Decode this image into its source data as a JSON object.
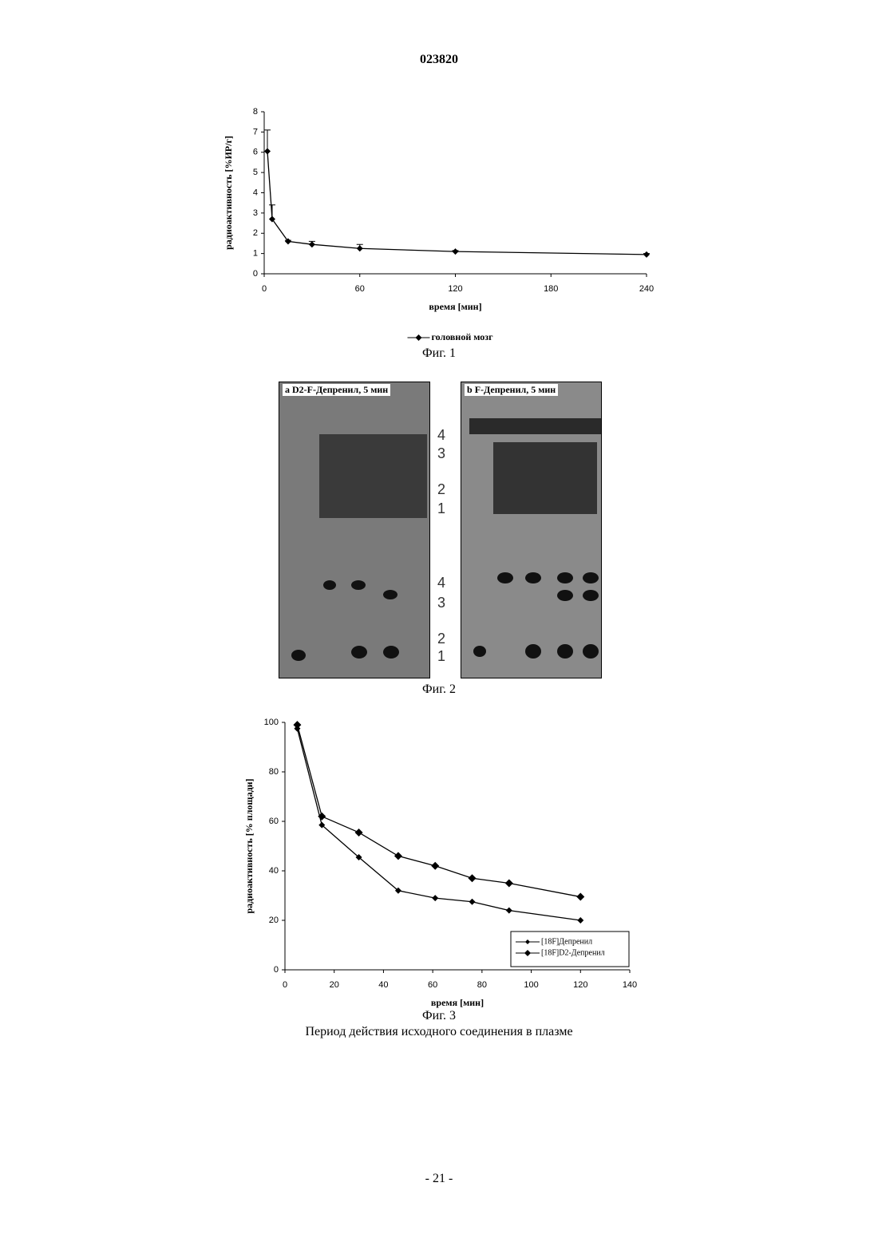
{
  "header": {
    "number": "023820"
  },
  "chart_data": [
    {
      "type": "line",
      "x_label": "время [мин]",
      "y_label": "радиоактивность [%ИР/г]",
      "x": [
        2,
        5,
        15,
        30,
        60,
        120,
        240
      ],
      "series": [
        {
          "name": "головной мозг",
          "color": "#000000",
          "values": [
            6.05,
            2.7,
            1.6,
            1.45,
            1.25,
            1.1,
            0.95
          ],
          "errors": [
            1.05,
            0.7,
            0.05,
            0.15,
            0.2,
            0.05,
            0.05
          ]
        }
      ],
      "xlim": [
        0,
        240
      ],
      "xticks": [
        0,
        60,
        120,
        180,
        240
      ],
      "ylim": [
        0,
        8
      ],
      "yticks": [
        0,
        1,
        2,
        3,
        4,
        5,
        6,
        7,
        8
      ],
      "grid": false,
      "legend": "bottom"
    },
    {
      "type": "line",
      "x_label": "время [мин]",
      "y_label": "радиоактивность [% площади]",
      "x": [
        5,
        15,
        30,
        46,
        61,
        76,
        91,
        120
      ],
      "series": [
        {
          "name": "[18F]Депренил",
          "color": "#000000",
          "values": [
            97.5,
            58.5,
            45.5,
            32,
            29,
            27.5,
            24,
            20
          ]
        },
        {
          "name": "[18F]D2-Депренил",
          "color": "#000000",
          "values": [
            99,
            62,
            55.5,
            46,
            42,
            37,
            35,
            29.5
          ]
        }
      ],
      "xlim": [
        0,
        140
      ],
      "xticks": [
        0,
        20,
        40,
        60,
        80,
        100,
        120,
        140
      ],
      "ylim": [
        0,
        100
      ],
      "yticks": [
        0,
        20,
        40,
        60,
        80,
        100
      ],
      "grid": false,
      "legend": "lower right"
    }
  ],
  "figure2": {
    "panels": [
      {
        "letter": "a",
        "title": "D2-F-Депренил, 5 мин"
      },
      {
        "letter": "b",
        "title": "F-Депренил, 5 мин"
      }
    ],
    "markers": [
      "4",
      "3",
      "2",
      "1",
      "4",
      "3",
      "2",
      "1"
    ]
  },
  "captions": {
    "fig1": "Фиг. 1",
    "fig2": "Фиг. 2",
    "fig3": "Фиг. 3",
    "fig3_note": "Период действия исходного соединения в плазме"
  },
  "footer": {
    "page": "- 21 -"
  }
}
